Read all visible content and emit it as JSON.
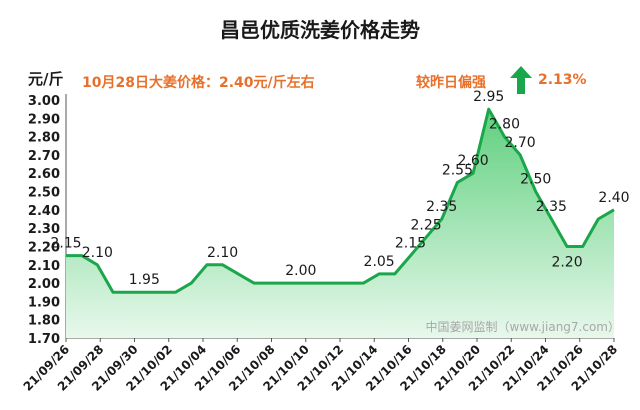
{
  "header": {
    "title": "昌邑优质洗姜价格走势",
    "unit": "元/斤",
    "headline": "10月28日大姜价格：2.40元/斤左右",
    "compare_label": "较昨日偏强",
    "change_pct": "2.13%"
  },
  "footer": {
    "source": "中国姜网监制（www.jiang7.com）"
  },
  "colors": {
    "line": "#1aa64a",
    "fill_top": "#5fd07e",
    "fill_bottom": "#e8f8ec",
    "accent": "#e8702a",
    "arrow": "#1aa64a"
  },
  "chart_data": {
    "type": "area",
    "title": "昌邑优质洗姜价格走势",
    "ylabel": "元/斤",
    "xlabel": "",
    "ylim": [
      1.7,
      3.0
    ],
    "yticks": [
      "1.70",
      "1.80",
      "1.90",
      "2.00",
      "2.10",
      "2.20",
      "2.30",
      "2.40",
      "2.50",
      "2.60",
      "2.70",
      "2.80",
      "2.90",
      "3.00"
    ],
    "xtick_labels": [
      "21/09/26",
      "21/09/28",
      "21/09/30",
      "21/10/02",
      "21/10/04",
      "21/10/06",
      "21/10/08",
      "21/10/10",
      "21/10/12",
      "21/10/14",
      "21/10/16",
      "21/10/18",
      "21/10/20",
      "21/10/22",
      "21/10/24",
      "21/10/26",
      "21/10/28"
    ],
    "values": [
      2.15,
      2.15,
      2.1,
      1.95,
      1.95,
      1.95,
      1.95,
      1.95,
      2.0,
      2.1,
      2.1,
      2.05,
      2.0,
      2.0,
      2.0,
      2.0,
      2.0,
      2.0,
      2.0,
      2.0,
      2.05,
      2.05,
      2.15,
      2.25,
      2.35,
      2.55,
      2.6,
      2.95,
      2.8,
      2.7,
      2.5,
      2.35,
      2.2,
      2.2,
      2.35,
      2.4
    ],
    "annotations": [
      {
        "i": 0,
        "label": "2.15"
      },
      {
        "i": 2,
        "label": "2.10"
      },
      {
        "i": 5,
        "label": "1.95"
      },
      {
        "i": 10,
        "label": "2.10"
      },
      {
        "i": 15,
        "label": "2.00"
      },
      {
        "i": 20,
        "label": "2.05"
      },
      {
        "i": 22,
        "label": "2.15"
      },
      {
        "i": 23,
        "label": "2.25"
      },
      {
        "i": 24,
        "label": "2.35"
      },
      {
        "i": 25,
        "label": "2.55"
      },
      {
        "i": 26,
        "label": "2.60"
      },
      {
        "i": 27,
        "label": "2.95"
      },
      {
        "i": 28,
        "label": "2.80"
      },
      {
        "i": 29,
        "label": "2.70"
      },
      {
        "i": 30,
        "label": "2.50"
      },
      {
        "i": 31,
        "label": "2.35"
      },
      {
        "i": 32,
        "label": "2.20"
      },
      {
        "i": 35,
        "label": "2.40"
      }
    ]
  }
}
